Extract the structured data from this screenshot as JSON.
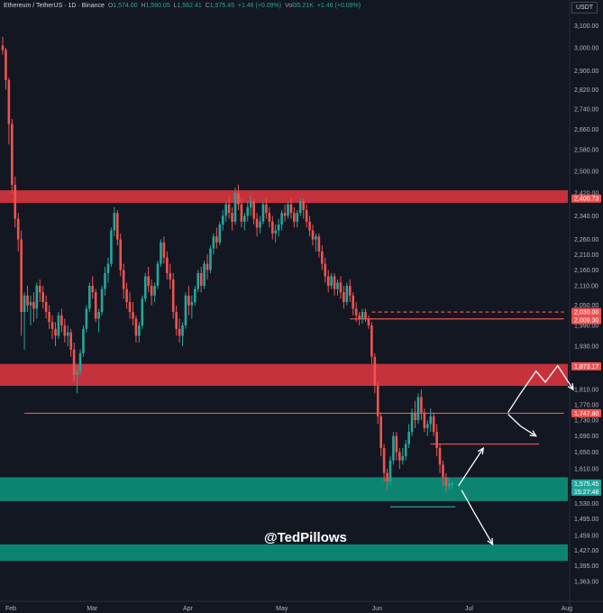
{
  "header": {
    "symbol": "Ethereum / TetherUS · 1D · Binance",
    "open_label": "O",
    "open": "1,574.00",
    "high_label": "H",
    "high": "1,580.05",
    "low_label": "L",
    "low": "1,562.41",
    "close_label": "C",
    "close": "1,575.45",
    "change": "+1.46 (+0.09%)",
    "vol_label": "Vol",
    "vol": "35.21K",
    "vol_change": "+1.46 (+0.09%)"
  },
  "currency": "USDT",
  "watermark": "@TedPillows",
  "colors": {
    "background": "#131722",
    "up": "#26a69a",
    "down": "#ef5350",
    "resistance_zone": "#d6353f",
    "support_zone": "#0b8f7a",
    "level_line": "#ef5350",
    "arrow": "#ffffff"
  },
  "chart_data": {
    "type": "candlestick",
    "symbol": "ETHUSDT",
    "timeframe": "1D",
    "y_axis": {
      "scale": "log",
      "ylim": [
        1345,
        3160
      ],
      "ticks": [
        3100,
        3000,
        2900,
        2820,
        2740,
        2660,
        2580,
        2500,
        2420,
        2340,
        2260,
        2210,
        2160,
        2110,
        2050,
        1990,
        1930,
        1870,
        1810,
        1770,
        1730,
        1690,
        1650,
        1610,
        1570,
        1530,
        1495,
        1459,
        1427,
        1395,
        1363
      ],
      "tick_labels": [
        "3,100.00",
        "3,000.00",
        "2,900.00",
        "2,820.00",
        "2,740.00",
        "2,660.00",
        "2,580.00",
        "2,500.00",
        "2,420.00",
        "2,340.00",
        "2,260.00",
        "2,210.00",
        "2,160.00",
        "2,110.00",
        "2,050.00",
        "1,990.00",
        "1,930.00",
        "1,870.00",
        "1,810.00",
        "1,770.00",
        "1,730.00",
        "1,690.00",
        "1,650.00",
        "1,610.00",
        "1,570.00",
        "1,530.00",
        "1,495.00",
        "1,459.00",
        "1,427.00",
        "1,395.00",
        "1,363.00"
      ]
    },
    "x_axis": {
      "labels": [
        "Feb",
        "Mar",
        "Apr",
        "May",
        "Jun",
        "Jul",
        "Aug"
      ],
      "dates": [
        "2025-02-01",
        "2025-03-01",
        "2025-04-01",
        "2025-05-01",
        "2025-06-01",
        "2025-07-01",
        "2025-08-01"
      ]
    },
    "price_labels": [
      {
        "value": 2400.73,
        "text": "2,400.73",
        "color": "#ef5350"
      },
      {
        "value": 2030.0,
        "text": "2,030.00",
        "color": "#ef5350"
      },
      {
        "value": 2009.3,
        "text": "2,009.30",
        "color": "#ef5350"
      },
      {
        "value": 1873.17,
        "text": "1,873.17",
        "color": "#ef5350"
      },
      {
        "value": 1747.8,
        "text": "1,747.80",
        "color": "#ef5350"
      },
      {
        "value": 1575.45,
        "text": "1,575.45",
        "color": "#26a69a"
      },
      {
        "value": 1575.45,
        "text": "15:27:48",
        "color": "#26a69a",
        "sub": true
      }
    ],
    "zones": [
      {
        "kind": "resistance",
        "from": 2385,
        "to": 2430,
        "start": "2025-02-01",
        "end": "2025-08-01"
      },
      {
        "kind": "resistance",
        "from": 1820,
        "to": 1880,
        "start": "2025-02-01",
        "end": "2025-08-01"
      },
      {
        "kind": "support",
        "from": 1535,
        "to": 1590,
        "start": "2025-02-01",
        "end": "2025-08-01"
      },
      {
        "kind": "support",
        "from": 1405,
        "to": 1440,
        "start": "2025-02-01",
        "end": "2025-08-01"
      }
    ],
    "levels": [
      {
        "price": 2030.0,
        "style": "dashed",
        "start": "2025-05-31",
        "end": "2025-08-01"
      },
      {
        "price": 2009.3,
        "style": "solid",
        "start": "2025-05-24",
        "end": "2025-08-01"
      },
      {
        "price": 1747.8,
        "style": "solid",
        "start": "2025-02-08",
        "end": "2025-08-01"
      },
      {
        "price": 1670.0,
        "style": "solid",
        "start": "2025-06-19",
        "end": "2025-07-24"
      },
      {
        "price": 1522.0,
        "style": "solid",
        "color": "#26a69a",
        "start": "2025-06-06",
        "end": "2025-06-27"
      }
    ],
    "projection_paths": [
      {
        "points": [
          [
            "2025-06-28",
            1570
          ],
          [
            "2025-07-06",
            1660
          ]
        ]
      },
      {
        "points": [
          [
            "2025-07-14",
            1750
          ],
          [
            "2025-07-18",
            1800
          ],
          [
            "2025-07-23",
            1860
          ],
          [
            "2025-07-26",
            1830
          ],
          [
            "2025-07-30",
            1875
          ],
          [
            "2025-08-04",
            1810
          ]
        ]
      },
      {
        "points": [
          [
            "2025-07-14",
            1745
          ],
          [
            "2025-07-18",
            1715
          ],
          [
            "2025-07-23",
            1690
          ]
        ]
      },
      {
        "points": [
          [
            "2025-06-29",
            1560
          ],
          [
            "2025-07-03",
            1510
          ],
          [
            "2025-07-09",
            1440
          ]
        ]
      }
    ],
    "candles": [
      [
        "2025-02-01",
        3010,
        3050,
        2970,
        2990
      ],
      [
        "2025-02-02",
        2990,
        3000,
        2820,
        2860
      ],
      [
        "2025-02-03",
        2860,
        2870,
        2600,
        2680
      ],
      [
        "2025-02-04",
        2680,
        2700,
        2420,
        2450
      ],
      [
        "2025-02-05",
        2450,
        2480,
        2300,
        2330
      ],
      [
        "2025-02-06",
        2330,
        2350,
        2220,
        2260
      ],
      [
        "2025-02-07",
        2260,
        2290,
        1960,
        2030
      ],
      [
        "2025-02-08",
        2030,
        2090,
        1920,
        2080
      ],
      [
        "2025-02-09",
        2080,
        2110,
        2030,
        2050
      ],
      [
        "2025-02-10",
        2050,
        2080,
        1990,
        2060
      ],
      [
        "2025-02-11",
        2060,
        2090,
        2000,
        2040
      ],
      [
        "2025-02-12",
        2040,
        2120,
        2010,
        2110
      ],
      [
        "2025-02-13",
        2110,
        2130,
        2060,
        2090
      ],
      [
        "2025-02-14",
        2090,
        2110,
        2040,
        2060
      ],
      [
        "2025-02-15",
        2060,
        2080,
        2010,
        2030
      ],
      [
        "2025-02-16",
        2030,
        2050,
        1980,
        2000
      ],
      [
        "2025-02-17",
        2000,
        2020,
        1950,
        1980
      ],
      [
        "2025-02-18",
        1980,
        2000,
        1930,
        1960
      ],
      [
        "2025-02-19",
        1960,
        2030,
        1950,
        2020
      ],
      [
        "2025-02-20",
        2020,
        2040,
        1970,
        1990
      ],
      [
        "2025-02-21",
        1990,
        2010,
        1940,
        1960
      ],
      [
        "2025-02-22",
        1960,
        1990,
        1930,
        1970
      ],
      [
        "2025-02-23",
        1970,
        1980,
        1900,
        1920
      ],
      [
        "2025-02-24",
        1920,
        1940,
        1830,
        1850
      ],
      [
        "2025-02-25",
        1850,
        1880,
        1800,
        1860
      ],
      [
        "2025-02-26",
        1860,
        1920,
        1850,
        1910
      ],
      [
        "2025-02-27",
        1910,
        1990,
        1900,
        1980
      ],
      [
        "2025-02-28",
        1980,
        2050,
        1970,
        2040
      ],
      [
        "2025-03-01",
        2040,
        2120,
        2030,
        2110
      ],
      [
        "2025-03-02",
        2110,
        2140,
        2070,
        2090
      ],
      [
        "2025-03-03",
        2090,
        2100,
        2000,
        2010
      ],
      [
        "2025-03-04",
        2010,
        2040,
        1970,
        2030
      ],
      [
        "2025-03-05",
        2030,
        2110,
        2020,
        2100
      ],
      [
        "2025-03-06",
        2100,
        2170,
        2080,
        2150
      ],
      [
        "2025-03-07",
        2150,
        2200,
        2120,
        2180
      ],
      [
        "2025-03-08",
        2180,
        2300,
        2170,
        2290
      ],
      [
        "2025-03-09",
        2290,
        2370,
        2270,
        2350
      ],
      [
        "2025-03-10",
        2350,
        2360,
        2240,
        2260
      ],
      [
        "2025-03-11",
        2260,
        2280,
        2140,
        2160
      ],
      [
        "2025-03-12",
        2160,
        2180,
        2070,
        2100
      ],
      [
        "2025-03-13",
        2100,
        2120,
        2040,
        2060
      ],
      [
        "2025-03-14",
        2060,
        2090,
        2010,
        2030
      ],
      [
        "2025-03-15",
        2030,
        2060,
        1990,
        2010
      ],
      [
        "2025-03-16",
        2010,
        2020,
        1940,
        1960
      ],
      [
        "2025-03-17",
        1960,
        2000,
        1940,
        1990
      ],
      [
        "2025-03-18",
        1990,
        2080,
        1980,
        2070
      ],
      [
        "2025-03-19",
        2070,
        2150,
        2060,
        2140
      ],
      [
        "2025-03-20",
        2140,
        2170,
        2090,
        2110
      ],
      [
        "2025-03-21",
        2110,
        2130,
        2050,
        2080
      ],
      [
        "2025-03-22",
        2080,
        2120,
        2060,
        2110
      ],
      [
        "2025-03-23",
        2110,
        2190,
        2100,
        2180
      ],
      [
        "2025-03-24",
        2180,
        2260,
        2170,
        2250
      ],
      [
        "2025-03-25",
        2250,
        2270,
        2180,
        2200
      ],
      [
        "2025-03-26",
        2200,
        2220,
        2130,
        2150
      ],
      [
        "2025-03-27",
        2150,
        2180,
        2100,
        2130
      ],
      [
        "2025-03-28",
        2130,
        2150,
        2010,
        2030
      ],
      [
        "2025-03-29",
        2030,
        2050,
        1960,
        1980
      ],
      [
        "2025-03-30",
        1980,
        2010,
        1940,
        1960
      ],
      [
        "2025-03-31",
        1960,
        2000,
        1930,
        1990
      ],
      [
        "2025-04-01",
        1990,
        2090,
        1980,
        2080
      ],
      [
        "2025-04-02",
        2080,
        2110,
        2020,
        2050
      ],
      [
        "2025-04-03",
        2050,
        2080,
        2010,
        2060
      ],
      [
        "2025-04-04",
        2060,
        2110,
        2050,
        2100
      ],
      [
        "2025-04-05",
        2100,
        2160,
        2090,
        2150
      ],
      [
        "2025-04-06",
        2150,
        2170,
        2090,
        2110
      ],
      [
        "2025-04-07",
        2110,
        2190,
        2100,
        2180
      ],
      [
        "2025-04-08",
        2180,
        2210,
        2130,
        2160
      ],
      [
        "2025-04-09",
        2160,
        2240,
        2150,
        2230
      ],
      [
        "2025-04-10",
        2230,
        2280,
        2210,
        2270
      ],
      [
        "2025-04-11",
        2270,
        2300,
        2230,
        2250
      ],
      [
        "2025-04-12",
        2250,
        2320,
        2240,
        2310
      ],
      [
        "2025-04-13",
        2310,
        2360,
        2290,
        2340
      ],
      [
        "2025-04-14",
        2340,
        2390,
        2320,
        2380
      ],
      [
        "2025-04-15",
        2380,
        2410,
        2330,
        2350
      ],
      [
        "2025-04-16",
        2350,
        2370,
        2290,
        2320
      ],
      [
        "2025-04-17",
        2320,
        2440,
        2310,
        2420
      ],
      [
        "2025-04-18",
        2420,
        2450,
        2360,
        2380
      ],
      [
        "2025-04-19",
        2380,
        2400,
        2300,
        2320
      ],
      [
        "2025-04-20",
        2320,
        2350,
        2290,
        2340
      ],
      [
        "2025-04-21",
        2340,
        2390,
        2320,
        2370
      ],
      [
        "2025-04-22",
        2370,
        2410,
        2340,
        2390
      ],
      [
        "2025-04-23",
        2390,
        2400,
        2310,
        2330
      ],
      [
        "2025-04-24",
        2330,
        2350,
        2270,
        2300
      ],
      [
        "2025-04-25",
        2300,
        2340,
        2280,
        2320
      ],
      [
        "2025-04-26",
        2320,
        2390,
        2310,
        2380
      ],
      [
        "2025-04-27",
        2380,
        2400,
        2330,
        2350
      ],
      [
        "2025-04-28",
        2350,
        2370,
        2300,
        2320
      ],
      [
        "2025-04-29",
        2320,
        2340,
        2260,
        2280
      ],
      [
        "2025-04-30",
        2280,
        2310,
        2250,
        2290
      ],
      [
        "2025-05-01",
        2290,
        2330,
        2270,
        2310
      ],
      [
        "2025-05-02",
        2310,
        2360,
        2290,
        2350
      ],
      [
        "2025-05-03",
        2350,
        2380,
        2320,
        2340
      ],
      [
        "2025-05-04",
        2340,
        2390,
        2330,
        2380
      ],
      [
        "2025-05-05",
        2380,
        2400,
        2330,
        2350
      ],
      [
        "2025-05-06",
        2350,
        2370,
        2300,
        2320
      ],
      [
        "2025-05-07",
        2320,
        2360,
        2300,
        2350
      ],
      [
        "2025-05-08",
        2350,
        2400,
        2340,
        2390
      ],
      [
        "2025-05-09",
        2390,
        2400,
        2330,
        2360
      ],
      [
        "2025-05-10",
        2360,
        2380,
        2300,
        2320
      ],
      [
        "2025-05-11",
        2320,
        2340,
        2270,
        2290
      ],
      [
        "2025-05-12",
        2290,
        2310,
        2240,
        2260
      ],
      [
        "2025-05-13",
        2260,
        2280,
        2220,
        2270
      ],
      [
        "2025-05-14",
        2270,
        2280,
        2200,
        2220
      ],
      [
        "2025-05-15",
        2220,
        2240,
        2160,
        2180
      ],
      [
        "2025-05-16",
        2180,
        2200,
        2120,
        2140
      ],
      [
        "2025-05-17",
        2140,
        2160,
        2090,
        2110
      ],
      [
        "2025-05-18",
        2110,
        2150,
        2100,
        2140
      ],
      [
        "2025-05-19",
        2140,
        2150,
        2080,
        2100
      ],
      [
        "2025-05-20",
        2100,
        2130,
        2080,
        2120
      ],
      [
        "2025-05-21",
        2120,
        2140,
        2070,
        2090
      ],
      [
        "2025-05-22",
        2090,
        2110,
        2040,
        2060
      ],
      [
        "2025-05-23",
        2060,
        2120,
        2050,
        2110
      ],
      [
        "2025-05-24",
        2110,
        2130,
        2060,
        2080
      ],
      [
        "2025-05-25",
        2080,
        2090,
        2020,
        2040
      ],
      [
        "2025-05-26",
        2040,
        2060,
        2000,
        2020
      ],
      [
        "2025-05-27",
        2020,
        2030,
        1990,
        2010
      ],
      [
        "2025-05-28",
        2010,
        2040,
        1995,
        2030
      ],
      [
        "2025-05-29",
        2030,
        2040,
        2000,
        2010
      ],
      [
        "2025-05-30",
        2010,
        2020,
        1980,
        1990
      ],
      [
        "2025-05-31",
        1990,
        2000,
        1880,
        1900
      ],
      [
        "2025-06-01",
        1900,
        1910,
        1800,
        1820
      ],
      [
        "2025-06-02",
        1820,
        1830,
        1720,
        1740
      ],
      [
        "2025-06-03",
        1740,
        1750,
        1640,
        1660
      ],
      [
        "2025-06-04",
        1660,
        1670,
        1580,
        1600
      ],
      [
        "2025-06-05",
        1600,
        1610,
        1560,
        1580
      ],
      [
        "2025-06-06",
        1580,
        1640,
        1570,
        1630
      ],
      [
        "2025-06-07",
        1630,
        1700,
        1620,
        1690
      ],
      [
        "2025-06-08",
        1690,
        1700,
        1630,
        1650
      ],
      [
        "2025-06-09",
        1650,
        1660,
        1610,
        1630
      ],
      [
        "2025-06-10",
        1630,
        1660,
        1620,
        1640
      ],
      [
        "2025-06-11",
        1640,
        1680,
        1630,
        1670
      ],
      [
        "2025-06-12",
        1670,
        1720,
        1660,
        1700
      ],
      [
        "2025-06-13",
        1700,
        1760,
        1690,
        1750
      ],
      [
        "2025-06-14",
        1750,
        1780,
        1710,
        1730
      ],
      [
        "2025-06-15",
        1730,
        1800,
        1720,
        1790
      ],
      [
        "2025-06-16",
        1790,
        1810,
        1730,
        1750
      ],
      [
        "2025-06-17",
        1750,
        1760,
        1700,
        1710
      ],
      [
        "2025-06-18",
        1710,
        1730,
        1690,
        1720
      ],
      [
        "2025-06-19",
        1720,
        1760,
        1700,
        1740
      ],
      [
        "2025-06-20",
        1740,
        1750,
        1690,
        1700
      ],
      [
        "2025-06-21",
        1700,
        1720,
        1640,
        1660
      ],
      [
        "2025-06-22",
        1660,
        1670,
        1600,
        1620
      ],
      [
        "2025-06-23",
        1620,
        1630,
        1570,
        1590
      ],
      [
        "2025-06-24",
        1590,
        1600,
        1555,
        1570
      ],
      [
        "2025-06-25",
        1570,
        1590,
        1560,
        1575
      ],
      [
        "2025-06-26",
        1574,
        1580.05,
        1562.41,
        1575.45
      ]
    ]
  }
}
